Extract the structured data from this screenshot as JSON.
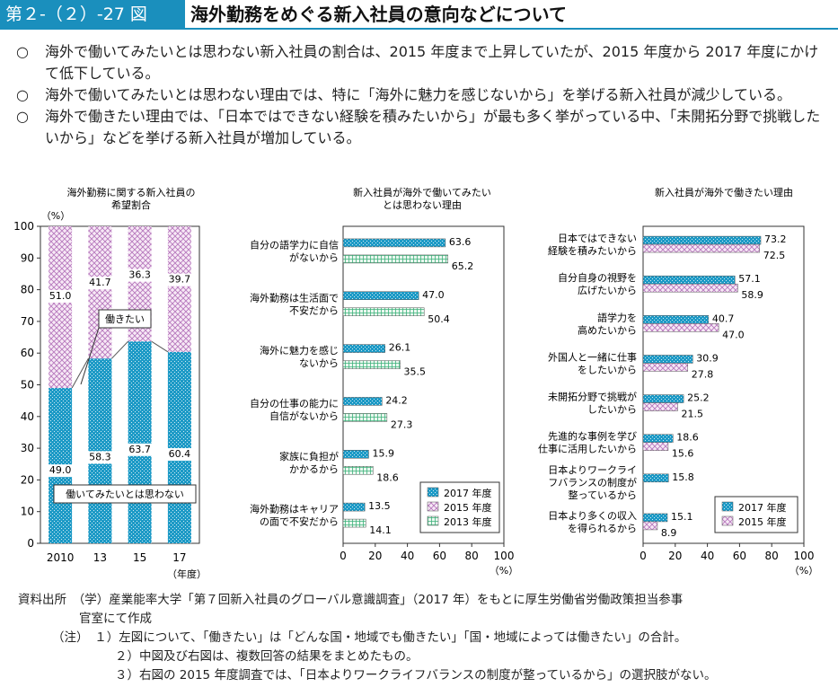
{
  "header": {
    "figure_number": "第２-（２）-27 図",
    "title": "海外勤務をめぐる新入社員の意向などについて"
  },
  "summary": {
    "bullet_mark": "○",
    "bullets": [
      "海外で働いてみたいとは思わない新入社員の割合は、2015 年度まで上昇していたが、2015 年度から 2017 年度にかけて低下している。",
      "海外で働いてみたいとは思わない理由では、特に「海外に魅力を感じないから」を挙げる新入社員が減少している。",
      "海外で働きたい理由では、「日本ではできない経験を積みたいから」が最も多く挙がっている中、「未開拓分野で挑戦したいから」などを挙げる新入社員が増加している。"
    ]
  },
  "chart_data": [
    {
      "type": "bar",
      "stacked": true,
      "title": [
        "海外勤務に関する新入社員の",
        "希望割合"
      ],
      "ylabel": "（%）",
      "xlabel": "（年度）",
      "categories": [
        "2010",
        "13",
        "15",
        "17"
      ],
      "ylim": [
        0,
        100
      ],
      "yticks": [
        0,
        10,
        20,
        30,
        40,
        50,
        60,
        70,
        80,
        90,
        100
      ],
      "series": [
        {
          "name": "働いてみたいとは思わない",
          "values": [
            49.0,
            58.3,
            63.7,
            60.4
          ],
          "labels": [
            "49.0",
            "58.3",
            "63.7",
            "60.4"
          ],
          "color": "#1d9ac6"
        },
        {
          "name": "働きたい",
          "values": [
            51.0,
            41.7,
            36.3,
            39.7
          ],
          "labels": [
            "51.0",
            "41.7",
            "36.3",
            "39.7"
          ],
          "color": "#c58fc8"
        }
      ]
    },
    {
      "type": "bar",
      "orientation": "horizontal",
      "title": [
        "新入社員が海外で働いてみたい",
        "とは思わない理由"
      ],
      "xlabel": "（%）",
      "xlim": [
        0,
        100
      ],
      "xticks": [
        0,
        20,
        40,
        60,
        80,
        100
      ],
      "categories": [
        [
          "自分の語学力に自信",
          "がないから"
        ],
        [
          "海外勤務は生活面で",
          "不安だから"
        ],
        [
          "海外に魅力を感じ",
          "ないから"
        ],
        [
          "自分の仕事の能力に",
          "自信がないから"
        ],
        [
          "家族に負担が",
          "かかるから"
        ],
        [
          "海外勤務はキャリア",
          "の面で不安だから"
        ]
      ],
      "series": [
        {
          "name": "2017 年度",
          "values": [
            63.6,
            47.0,
            26.1,
            24.2,
            15.9,
            13.5
          ],
          "labels": [
            "63.6",
            "47.0",
            "26.1",
            "24.2",
            "15.9",
            "13.5"
          ],
          "color": "#1d9ac6"
        },
        {
          "name": "2015 年度",
          "values": [
            null,
            null,
            null,
            null,
            null,
            null
          ],
          "labels": [],
          "color": "#c58fc8"
        },
        {
          "name": "2013 年度",
          "values": [
            65.2,
            50.4,
            35.5,
            27.3,
            18.6,
            14.1
          ],
          "labels": [
            "65.2",
            "50.4",
            "35.5",
            "27.3",
            "18.6",
            "14.1"
          ],
          "color": "#4cbf8c"
        }
      ],
      "legend_position": "bottom-right"
    },
    {
      "type": "bar",
      "orientation": "horizontal",
      "title": [
        "新入社員が海外で働きたい理由"
      ],
      "xlabel": "（%）",
      "xlim": [
        0,
        100
      ],
      "xticks": [
        0,
        20,
        40,
        60,
        80,
        100
      ],
      "categories": [
        [
          "日本ではできない",
          "経験を積みたいから"
        ],
        [
          "自分自身の視野を",
          "広げたいから"
        ],
        [
          "語学力を",
          "高めたいから"
        ],
        [
          "外国人と一緒に仕事",
          "をしたいから"
        ],
        [
          "未開拓分野で挑戦が",
          "したいから"
        ],
        [
          "先進的な事例を学び",
          "仕事に活用したいから"
        ],
        [
          "日本よりワークライ",
          "フバランスの制度が",
          "整っているから"
        ],
        [
          "日本より多くの収入",
          "を得られるから"
        ]
      ],
      "series": [
        {
          "name": "2017 年度",
          "values": [
            73.2,
            57.1,
            40.7,
            30.9,
            25.2,
            18.6,
            15.8,
            15.1
          ],
          "labels": [
            "73.2",
            "57.1",
            "40.7",
            "30.9",
            "25.2",
            "18.6",
            "15.8",
            "15.1"
          ],
          "color": "#1d9ac6"
        },
        {
          "name": "2015 年度",
          "values": [
            72.5,
            58.9,
            47.0,
            27.8,
            21.5,
            15.6,
            null,
            8.9
          ],
          "labels": [
            "72.5",
            "58.9",
            "47.0",
            "27.8",
            "21.5",
            "15.6",
            "",
            "8.9"
          ],
          "color": "#c58fc8"
        }
      ],
      "legend_position": "bottom-right"
    }
  ],
  "notes": {
    "source_label": "資料出所",
    "source_text": "（学）産業能率大学「第７回新入社員のグローバル意識調査」（2017 年）をもとに厚生労働省労働政策担当参事",
    "source_text_2": "官室にて作成",
    "note_label": "（注）",
    "items": [
      "１）左図について、「働きたい」は「どんな国・地域でも働きたい」「国・地域によっては働きたい」の合計。",
      "２）中図及び右図は、複数回答の結果をまとめたもの。",
      "３）右図の 2015 年度調査では、「日本よりワークライフバランスの制度が整っているから」の選択肢がない。"
    ]
  }
}
